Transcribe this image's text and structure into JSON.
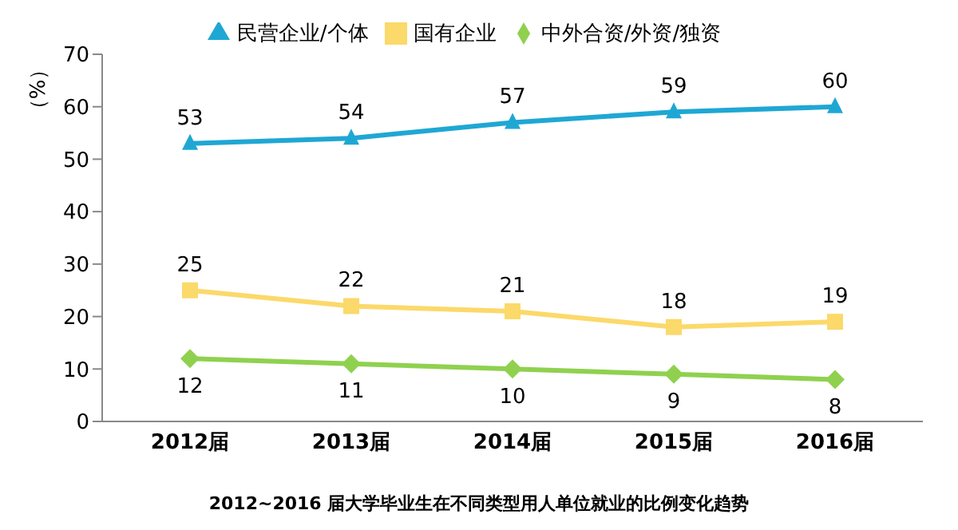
{
  "chart_data": {
    "type": "line",
    "title": "2012~2016 届大学毕业生在不同类型用人单位就业的比例变化趋势",
    "ylabel": "（%）",
    "categories": [
      "2012届",
      "2013届",
      "2014届",
      "2015届",
      "2016届"
    ],
    "series": [
      {
        "name": "民营企业/个体",
        "color": "#1fa7d4",
        "marker": "triangle",
        "values": [
          53,
          54,
          57,
          59,
          60
        ]
      },
      {
        "name": "国有企业",
        "color": "#fbd96a",
        "marker": "square",
        "values": [
          25,
          22,
          21,
          18,
          19
        ]
      },
      {
        "name": "中外合资/外资/独资",
        "color": "#8fd14f",
        "marker": "diamond",
        "values": [
          12,
          11,
          10,
          9,
          8
        ]
      }
    ],
    "ylim": [
      0,
      70
    ],
    "yticks": [
      0,
      10,
      20,
      30,
      40,
      50,
      60,
      70
    ],
    "grid": false,
    "legend": "top",
    "data_labels": true
  }
}
